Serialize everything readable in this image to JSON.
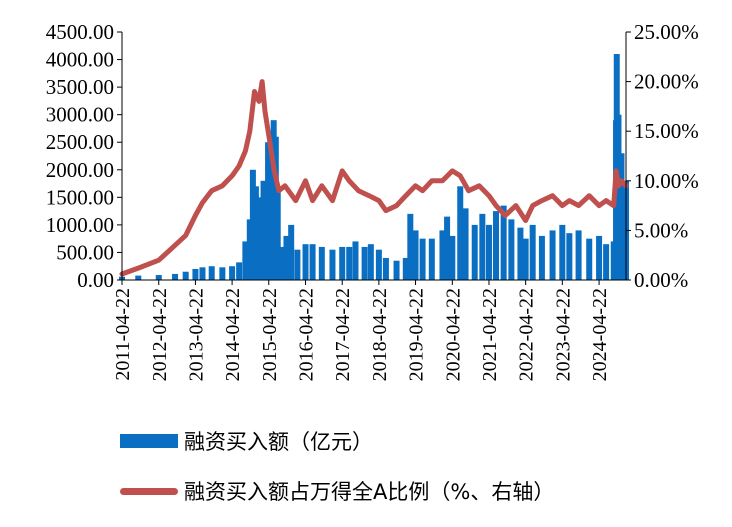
{
  "chart_data": {
    "type": "bar+line",
    "title": "",
    "left_axis": {
      "min": 0,
      "max": 4500,
      "step": 500,
      "tick_labels": [
        "0.00",
        "500.00",
        "1000.00",
        "1500.00",
        "2000.00",
        "2500.00",
        "3000.00",
        "3500.00",
        "4000.00",
        "4500.00"
      ]
    },
    "right_axis": {
      "min": 0,
      "max": 25,
      "step": 5,
      "tick_labels": [
        "0.00%",
        "5.00%",
        "10.00%",
        "15.00%",
        "20.00%",
        "25.00%"
      ]
    },
    "x_ticks": [
      "2011-04-22",
      "2012-04-22",
      "2013-04-22",
      "2014-04-22",
      "2015-04-22",
      "2016-04-22",
      "2017-04-22",
      "2018-04-22",
      "2019-04-22",
      "2020-04-22",
      "2021-04-22",
      "2022-04-22",
      "2023-04-22",
      "2024-04-22"
    ],
    "x_range": [
      "2011-04-22",
      "2025-01-15"
    ],
    "series": [
      {
        "name": "融资买入额（亿元）",
        "type": "bar",
        "axis": "left",
        "color": "#0a6fc2",
        "points": [
          [
            "2011-04-22",
            60
          ],
          [
            "2011-10-01",
            80
          ],
          [
            "2012-04-22",
            90
          ],
          [
            "2012-10-01",
            110
          ],
          [
            "2013-01-15",
            150
          ],
          [
            "2013-04-22",
            200
          ],
          [
            "2013-07-01",
            230
          ],
          [
            "2013-10-01",
            250
          ],
          [
            "2014-01-15",
            230
          ],
          [
            "2014-04-22",
            250
          ],
          [
            "2014-07-01",
            320
          ],
          [
            "2014-09-01",
            700
          ],
          [
            "2014-10-15",
            1100
          ],
          [
            "2014-11-15",
            2000
          ],
          [
            "2014-12-15",
            1700
          ],
          [
            "2015-01-15",
            1500
          ],
          [
            "2015-03-01",
            1800
          ],
          [
            "2015-04-15",
            2500
          ],
          [
            "2015-05-15",
            2700
          ],
          [
            "2015-06-10",
            2900
          ],
          [
            "2015-07-01",
            2600
          ],
          [
            "2015-07-20",
            1600
          ],
          [
            "2015-09-01",
            600
          ],
          [
            "2015-10-15",
            800
          ],
          [
            "2015-12-01",
            1000
          ],
          [
            "2016-02-01",
            550
          ],
          [
            "2016-04-22",
            650
          ],
          [
            "2016-07-01",
            650
          ],
          [
            "2016-10-01",
            600
          ],
          [
            "2017-01-15",
            550
          ],
          [
            "2017-04-22",
            600
          ],
          [
            "2017-07-01",
            600
          ],
          [
            "2017-09-01",
            700
          ],
          [
            "2017-12-01",
            600
          ],
          [
            "2018-02-01",
            650
          ],
          [
            "2018-04-22",
            550
          ],
          [
            "2018-07-01",
            400
          ],
          [
            "2018-10-15",
            350
          ],
          [
            "2019-01-15",
            400
          ],
          [
            "2019-03-01",
            1200
          ],
          [
            "2019-04-22",
            900
          ],
          [
            "2019-07-01",
            750
          ],
          [
            "2019-10-01",
            750
          ],
          [
            "2020-01-15",
            900
          ],
          [
            "2020-03-01",
            1150
          ],
          [
            "2020-04-22",
            800
          ],
          [
            "2020-07-10",
            1700
          ],
          [
            "2020-09-01",
            1300
          ],
          [
            "2020-12-01",
            1000
          ],
          [
            "2021-02-15",
            1200
          ],
          [
            "2021-04-22",
            1000
          ],
          [
            "2021-07-01",
            1250
          ],
          [
            "2021-09-15",
            1350
          ],
          [
            "2021-12-01",
            1100
          ],
          [
            "2022-03-01",
            950
          ],
          [
            "2022-04-22",
            750
          ],
          [
            "2022-07-01",
            1000
          ],
          [
            "2022-10-01",
            800
          ],
          [
            "2023-01-15",
            900
          ],
          [
            "2023-04-22",
            1000
          ],
          [
            "2023-07-01",
            850
          ],
          [
            "2023-10-01",
            900
          ],
          [
            "2024-01-15",
            750
          ],
          [
            "2024-04-22",
            800
          ],
          [
            "2024-07-01",
            650
          ],
          [
            "2024-09-15",
            700
          ],
          [
            "2024-10-08",
            2900
          ],
          [
            "2024-10-15",
            4100
          ],
          [
            "2024-11-01",
            3000
          ],
          [
            "2024-12-01",
            2300
          ],
          [
            "2025-01-15",
            1800
          ]
        ]
      },
      {
        "name": "融资买入额占万得全A比例（%、右轴）",
        "type": "line",
        "axis": "right",
        "color": "#c0504d",
        "points": [
          [
            "2011-04-22",
            0.6
          ],
          [
            "2011-10-01",
            1.2
          ],
          [
            "2012-04-22",
            2.0
          ],
          [
            "2012-10-01",
            3.5
          ],
          [
            "2013-01-15",
            4.5
          ],
          [
            "2013-04-22",
            6.5
          ],
          [
            "2013-07-01",
            7.8
          ],
          [
            "2013-10-01",
            9.0
          ],
          [
            "2014-01-15",
            9.5
          ],
          [
            "2014-04-22",
            10.5
          ],
          [
            "2014-07-01",
            11.5
          ],
          [
            "2014-09-01",
            13.0
          ],
          [
            "2014-10-15",
            15.0
          ],
          [
            "2014-12-01",
            19.0
          ],
          [
            "2015-01-15",
            18.0
          ],
          [
            "2015-02-15",
            20.0
          ],
          [
            "2015-03-15",
            17.0
          ],
          [
            "2015-05-01",
            14.0
          ],
          [
            "2015-06-15",
            11.0
          ],
          [
            "2015-08-01",
            9.0
          ],
          [
            "2015-10-01",
            9.5
          ],
          [
            "2016-01-15",
            8.0
          ],
          [
            "2016-04-22",
            10.0
          ],
          [
            "2016-07-01",
            8.0
          ],
          [
            "2016-10-01",
            9.5
          ],
          [
            "2017-01-15",
            8.0
          ],
          [
            "2017-04-22",
            11.0
          ],
          [
            "2017-07-01",
            10.0
          ],
          [
            "2017-10-01",
            9.0
          ],
          [
            "2018-01-15",
            8.5
          ],
          [
            "2018-04-22",
            8.0
          ],
          [
            "2018-07-01",
            7.0
          ],
          [
            "2018-10-15",
            7.5
          ],
          [
            "2019-01-15",
            8.5
          ],
          [
            "2019-04-22",
            9.5
          ],
          [
            "2019-07-01",
            9.0
          ],
          [
            "2019-10-01",
            10.0
          ],
          [
            "2020-01-15",
            10.0
          ],
          [
            "2020-04-22",
            11.0
          ],
          [
            "2020-07-10",
            10.5
          ],
          [
            "2020-10-01",
            9.0
          ],
          [
            "2021-01-15",
            9.5
          ],
          [
            "2021-04-22",
            8.5
          ],
          [
            "2021-07-01",
            7.5
          ],
          [
            "2021-10-01",
            6.5
          ],
          [
            "2022-01-15",
            7.5
          ],
          [
            "2022-04-22",
            6.0
          ],
          [
            "2022-07-01",
            7.5
          ],
          [
            "2022-10-01",
            8.0
          ],
          [
            "2023-01-15",
            8.5
          ],
          [
            "2023-04-22",
            7.5
          ],
          [
            "2023-07-01",
            8.0
          ],
          [
            "2023-10-01",
            7.5
          ],
          [
            "2024-01-15",
            8.5
          ],
          [
            "2024-04-22",
            7.5
          ],
          [
            "2024-07-01",
            8.0
          ],
          [
            "2024-09-15",
            7.5
          ],
          [
            "2024-10-08",
            11.0
          ],
          [
            "2024-11-01",
            9.5
          ],
          [
            "2024-12-01",
            10.0
          ],
          [
            "2025-01-15",
            9.5
          ]
        ]
      }
    ],
    "legend": {
      "placement": "bottom",
      "items": [
        "融资买入额（亿元）",
        "融资买入额占万得全A比例（%、右轴）"
      ]
    }
  }
}
